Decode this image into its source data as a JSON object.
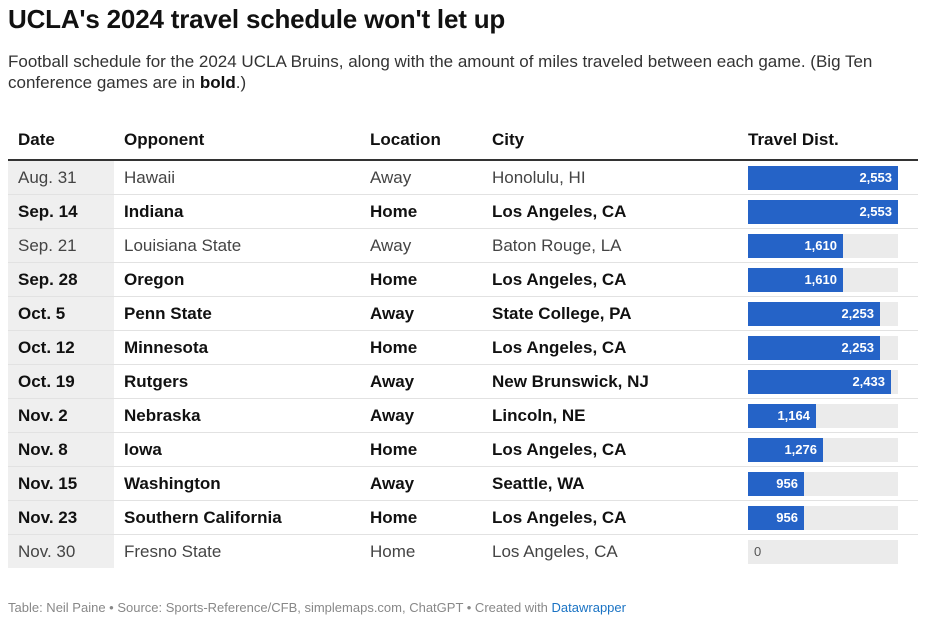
{
  "title": "UCLA's 2024 travel schedule won't let up",
  "subtitle_before": "Football schedule for the 2024 UCLA Bruins, along with the amount of miles traveled between each game. (Big Ten conference games are in ",
  "subtitle_bold": "bold",
  "subtitle_after": ".)",
  "columns": [
    "Date",
    "Opponent",
    "Location",
    "City",
    "Travel Dist."
  ],
  "footer_text": "Table: Neil Paine • Source: Sports-Reference/CFB, simplemaps.com, ChatGPT • Created with ",
  "footer_link": "Datawrapper",
  "colors": {
    "bar": "#2563c7",
    "track": "#ebebeb",
    "date_cell": "#efefef",
    "link": "#1a73c4"
  },
  "chart_data": {
    "type": "table",
    "bar_column": "Travel Dist.",
    "bar_max": 2553,
    "rows": [
      {
        "date": "Aug. 31",
        "opponent": "Hawaii",
        "location": "Away",
        "city": "Honolulu, HI",
        "distance": 2553,
        "distance_label": "2,553",
        "big_ten": false
      },
      {
        "date": "Sep. 14",
        "opponent": "Indiana",
        "location": "Home",
        "city": "Los Angeles, CA",
        "distance": 2553,
        "distance_label": "2,553",
        "big_ten": true
      },
      {
        "date": "Sep. 21",
        "opponent": "Louisiana State",
        "location": "Away",
        "city": "Baton Rouge, LA",
        "distance": 1610,
        "distance_label": "1,610",
        "big_ten": false
      },
      {
        "date": "Sep. 28",
        "opponent": "Oregon",
        "location": "Home",
        "city": "Los Angeles, CA",
        "distance": 1610,
        "distance_label": "1,610",
        "big_ten": true
      },
      {
        "date": "Oct. 5",
        "opponent": "Penn State",
        "location": "Away",
        "city": "State College, PA",
        "distance": 2253,
        "distance_label": "2,253",
        "big_ten": true
      },
      {
        "date": "Oct. 12",
        "opponent": "Minnesota",
        "location": "Home",
        "city": "Los Angeles, CA",
        "distance": 2253,
        "distance_label": "2,253",
        "big_ten": true
      },
      {
        "date": "Oct. 19",
        "opponent": "Rutgers",
        "location": "Away",
        "city": "New Brunswick, NJ",
        "distance": 2433,
        "distance_label": "2,433",
        "big_ten": true
      },
      {
        "date": "Nov. 2",
        "opponent": "Nebraska",
        "location": "Away",
        "city": "Lincoln, NE",
        "distance": 1164,
        "distance_label": "1,164",
        "big_ten": true
      },
      {
        "date": "Nov. 8",
        "opponent": "Iowa",
        "location": "Home",
        "city": "Los Angeles, CA",
        "distance": 1276,
        "distance_label": "1,276",
        "big_ten": true
      },
      {
        "date": "Nov. 15",
        "opponent": "Washington",
        "location": "Away",
        "city": "Seattle, WA",
        "distance": 956,
        "distance_label": "956",
        "big_ten": true
      },
      {
        "date": "Nov. 23",
        "opponent": "Southern California",
        "location": "Home",
        "city": "Los Angeles, CA",
        "distance": 956,
        "distance_label": "956",
        "big_ten": true
      },
      {
        "date": "Nov. 30",
        "opponent": "Fresno State",
        "location": "Home",
        "city": "Los Angeles, CA",
        "distance": 0,
        "distance_label": "0",
        "big_ten": false
      }
    ]
  }
}
